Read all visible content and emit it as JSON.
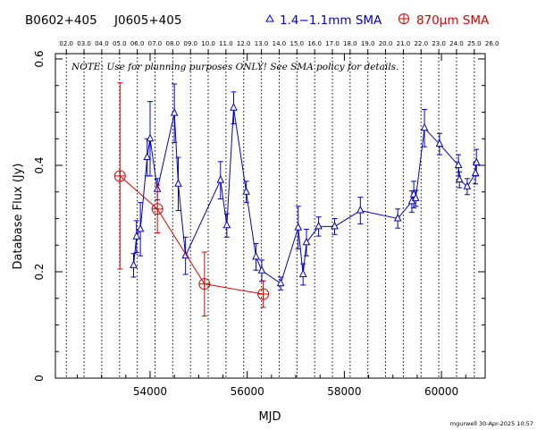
{
  "chart_data": {
    "type": "scatter",
    "source_name": "B0602+405",
    "alt_name": "J0605+405",
    "title": "",
    "xlabel": "MJD",
    "ylabel": "Database Flux (Jy)",
    "xlim": [
      52050,
      60900
    ],
    "ylim": [
      0,
      0.61
    ],
    "x_ticks": [
      54000,
      56000,
      58000,
      60000
    ],
    "x_tick_labels": [
      "54000",
      "56000",
      "58000",
      "60000"
    ],
    "y_ticks": [
      0,
      0.2,
      0.4,
      0.6
    ],
    "y_tick_labels": [
      "0",
      "0.2",
      "0.4",
      "0.6"
    ],
    "top_axis_labels": [
      "02.0",
      "03.0",
      "04.0",
      "05.0",
      "06.0",
      "07.0",
      "08.0",
      "09.0",
      "10.0",
      "11.0",
      "12.0",
      "13.0",
      "14.0",
      "15.0",
      "16.0",
      "17.0",
      "18.0",
      "19.0",
      "20.0",
      "21.0",
      "22.0",
      "23.0",
      "24.0",
      "25.0",
      "26.0"
    ],
    "top_axis_mjd": [
      52275,
      52640,
      53005,
      53371,
      53736,
      54101,
      54466,
      54832,
      55197,
      55562,
      55927,
      56293,
      56658,
      57023,
      57388,
      57754,
      58119,
      58484,
      58849,
      59215,
      59580,
      59945,
      60310,
      60676,
      61041
    ],
    "note": "NOTE: Use for planning purposes ONLY!  See SMA policy for details.",
    "footer": "mgurwell 30-Apr-2025 10:57",
    "grid": "vertical dotted lines at year boundaries",
    "series": [
      {
        "name": "1.4−1.1mm SMA",
        "color": "#0000cc",
        "marker": "triangle",
        "connected": true,
        "points": [
          {
            "x": 53660,
            "y": 0.212,
            "err": 0.022
          },
          {
            "x": 53720,
            "y": 0.266,
            "err": 0.03
          },
          {
            "x": 53800,
            "y": 0.28,
            "err": 0.05
          },
          {
            "x": 53940,
            "y": 0.415,
            "err": 0.035
          },
          {
            "x": 54000,
            "y": 0.45,
            "err": 0.07
          },
          {
            "x": 54150,
            "y": 0.355,
            "err": 0.02
          },
          {
            "x": 54500,
            "y": 0.498,
            "err": 0.055
          },
          {
            "x": 54580,
            "y": 0.365,
            "err": 0.05
          },
          {
            "x": 54730,
            "y": 0.23,
            "err": 0.035
          },
          {
            "x": 55450,
            "y": 0.372,
            "err": 0.035
          },
          {
            "x": 55580,
            "y": 0.287,
            "err": 0.022
          },
          {
            "x": 55720,
            "y": 0.508,
            "err": 0.03
          },
          {
            "x": 55980,
            "y": 0.35,
            "err": 0.02
          },
          {
            "x": 56180,
            "y": 0.228,
            "err": 0.025
          },
          {
            "x": 56300,
            "y": 0.202,
            "err": 0.02
          },
          {
            "x": 56690,
            "y": 0.178,
            "err": 0.012
          },
          {
            "x": 57050,
            "y": 0.283,
            "err": 0.04
          },
          {
            "x": 57150,
            "y": 0.195,
            "err": 0.02
          },
          {
            "x": 57220,
            "y": 0.255,
            "err": 0.025
          },
          {
            "x": 57470,
            "y": 0.285,
            "err": 0.018
          },
          {
            "x": 57800,
            "y": 0.285,
            "err": 0.015
          },
          {
            "x": 58330,
            "y": 0.315,
            "err": 0.025
          },
          {
            "x": 59100,
            "y": 0.3,
            "err": 0.018
          },
          {
            "x": 59390,
            "y": 0.332,
            "err": 0.02
          },
          {
            "x": 59430,
            "y": 0.345,
            "err": 0.025
          },
          {
            "x": 59470,
            "y": 0.338,
            "err": 0.015
          },
          {
            "x": 59650,
            "y": 0.47,
            "err": 0.035
          },
          {
            "x": 59960,
            "y": 0.44,
            "err": 0.02
          },
          {
            "x": 60350,
            "y": 0.4,
            "err": 0.02
          },
          {
            "x": 60370,
            "y": 0.373,
            "err": 0.015
          },
          {
            "x": 60530,
            "y": 0.36,
            "err": 0.015
          },
          {
            "x": 60700,
            "y": 0.385,
            "err": 0.02
          },
          {
            "x": 60720,
            "y": 0.405,
            "err": 0.025
          }
        ]
      },
      {
        "name": "870μm SMA",
        "color": "#dd0000",
        "marker": "circle-plus",
        "connected": true,
        "points": [
          {
            "x": 53380,
            "y": 0.38,
            "err": 0.175
          },
          {
            "x": 54150,
            "y": 0.318,
            "err": 0.045
          },
          {
            "x": 55120,
            "y": 0.177,
            "err": 0.06
          },
          {
            "x": 56330,
            "y": 0.158,
            "err": 0.025
          }
        ]
      }
    ]
  }
}
